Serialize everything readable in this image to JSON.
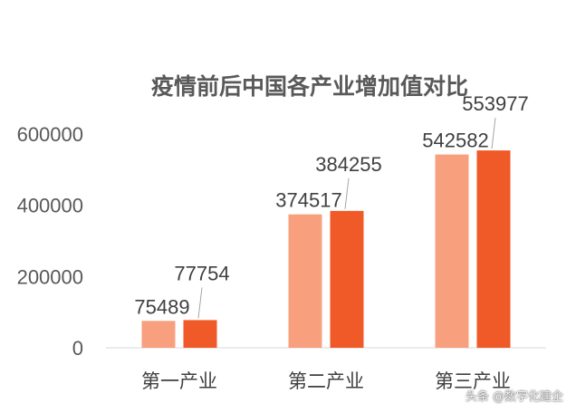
{
  "chart_data": {
    "type": "bar",
    "title": "疫情前后中国各产业增加值对比",
    "categories": [
      "第一产业",
      "第二产业",
      "第三产业"
    ],
    "series": [
      {
        "values": [
          75489,
          374517,
          542582
        ],
        "color": "#F8A07E"
      },
      {
        "values": [
          77754,
          384255,
          553977
        ],
        "color": "#F05A28"
      }
    ],
    "y_ticks": [
      "0",
      "200000",
      "400000",
      "600000"
    ],
    "ylim": [
      0,
      600000
    ],
    "grid": false,
    "legend": "none"
  },
  "watermark": "头条 @数字化建企"
}
